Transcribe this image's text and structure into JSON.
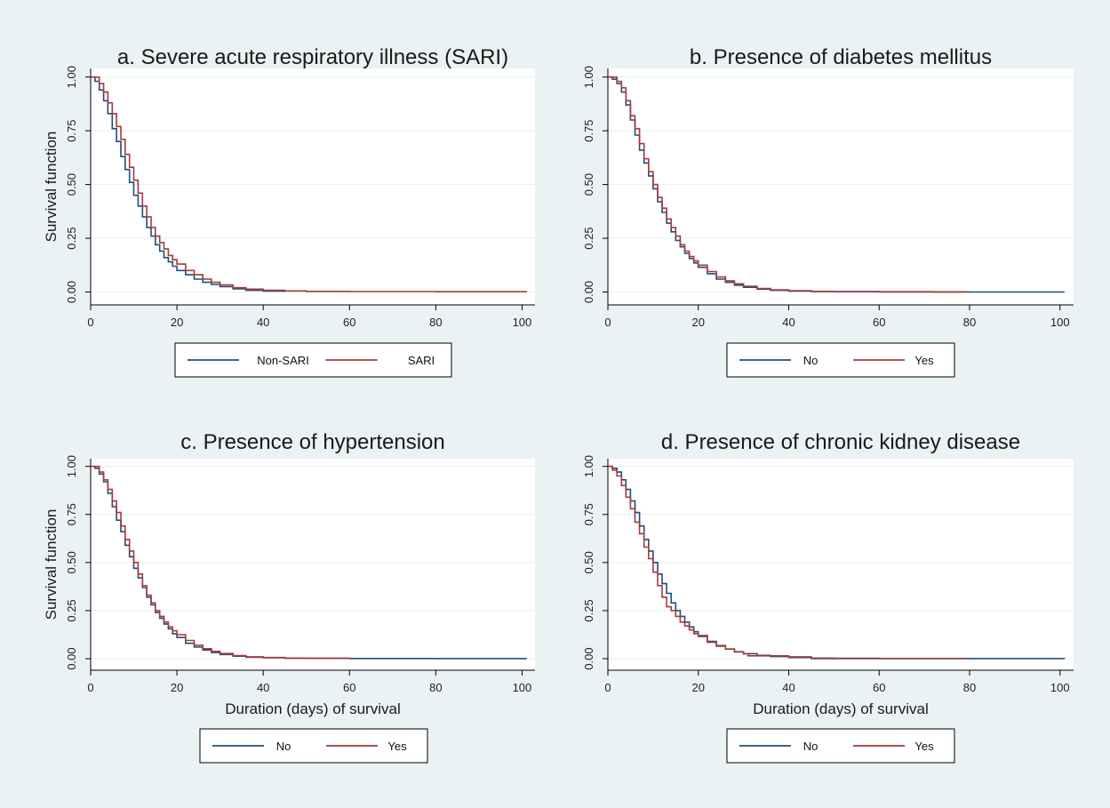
{
  "figure": {
    "background": "#eaf2f3",
    "plot_background": "#ffffff",
    "grid_color": "#eaf2f3"
  },
  "chart_data": [
    {
      "type": "line",
      "title": "a. Severe acute respiratory illness (SARI)",
      "xlabel": "",
      "ylabel": "Survival function",
      "xlim": [
        0,
        103
      ],
      "ylim": [
        -0.06,
        1.04
      ],
      "xticks": [
        0,
        20,
        40,
        60,
        80,
        100
      ],
      "xtick_labels": [
        "0",
        "20",
        "40",
        "60",
        "80",
        "100"
      ],
      "yticks": [
        0,
        0.25,
        0.5,
        0.75,
        1
      ],
      "ytick_labels": [
        "0.00",
        "0.25",
        "0.50",
        "0.75",
        "1.00"
      ],
      "grid": true,
      "legend_position": "bottom",
      "series": [
        {
          "name": "Non-SARI",
          "color": "#1f4e79",
          "x": [
            0,
            1,
            2,
            3,
            4,
            5,
            6,
            7,
            8,
            9,
            10,
            11,
            12,
            13,
            14,
            15,
            16,
            17,
            18,
            19,
            20,
            22,
            24,
            26,
            28,
            30,
            33,
            36,
            40,
            45
          ],
          "y": [
            1.0,
            0.98,
            0.94,
            0.89,
            0.83,
            0.76,
            0.7,
            0.63,
            0.57,
            0.51,
            0.45,
            0.4,
            0.35,
            0.3,
            0.26,
            0.22,
            0.19,
            0.16,
            0.14,
            0.12,
            0.1,
            0.08,
            0.06,
            0.045,
            0.035,
            0.025,
            0.015,
            0.008,
            0.004,
            0.0
          ]
        },
        {
          "name": "SARI",
          "color": "#a53a3a",
          "x": [
            0,
            1,
            2,
            3,
            4,
            5,
            6,
            7,
            8,
            9,
            10,
            11,
            12,
            13,
            14,
            15,
            16,
            17,
            18,
            19,
            20,
            22,
            24,
            26,
            28,
            30,
            33,
            36,
            40,
            45,
            50,
            60,
            80,
            101
          ],
          "y": [
            1.0,
            1.0,
            0.97,
            0.93,
            0.88,
            0.83,
            0.77,
            0.71,
            0.64,
            0.58,
            0.52,
            0.46,
            0.4,
            0.35,
            0.3,
            0.26,
            0.23,
            0.2,
            0.17,
            0.15,
            0.13,
            0.1,
            0.08,
            0.06,
            0.045,
            0.033,
            0.02,
            0.013,
            0.008,
            0.005,
            0.003,
            0.002,
            0.001,
            0.0
          ]
        }
      ]
    },
    {
      "type": "line",
      "title": "b. Presence of diabetes mellitus",
      "xlabel": "",
      "ylabel": "",
      "xlim": [
        0,
        103
      ],
      "ylim": [
        -0.06,
        1.04
      ],
      "xticks": [
        0,
        20,
        40,
        60,
        80,
        100
      ],
      "xtick_labels": [
        "0",
        "20",
        "40",
        "60",
        "80",
        "100"
      ],
      "yticks": [
        0,
        0.25,
        0.5,
        0.75,
        1
      ],
      "ytick_labels": [
        "0.00",
        "0.25",
        "0.50",
        "0.75",
        "1.00"
      ],
      "grid": true,
      "legend_position": "bottom",
      "series": [
        {
          "name": "No",
          "color": "#1f4e79",
          "x": [
            0,
            1,
            2,
            3,
            4,
            5,
            6,
            7,
            8,
            9,
            10,
            11,
            12,
            13,
            14,
            15,
            16,
            17,
            18,
            19,
            20,
            22,
            24,
            26,
            28,
            30,
            33,
            36,
            40,
            45,
            50,
            60,
            80,
            101
          ],
          "y": [
            1.0,
            0.99,
            0.97,
            0.93,
            0.87,
            0.8,
            0.73,
            0.66,
            0.6,
            0.54,
            0.48,
            0.42,
            0.37,
            0.32,
            0.28,
            0.24,
            0.21,
            0.18,
            0.155,
            0.135,
            0.115,
            0.085,
            0.06,
            0.045,
            0.032,
            0.022,
            0.013,
            0.008,
            0.004,
            0.002,
            0.001,
            0.0005,
            0.0,
            0.0
          ]
        },
        {
          "name": "Yes",
          "color": "#a53a3a",
          "x": [
            0,
            1,
            2,
            3,
            4,
            5,
            6,
            7,
            8,
            9,
            10,
            11,
            12,
            13,
            14,
            15,
            16,
            17,
            18,
            19,
            20,
            22,
            24,
            26,
            28,
            30,
            33,
            36,
            40,
            45,
            50,
            60,
            72,
            79
          ],
          "y": [
            1.0,
            1.0,
            0.98,
            0.95,
            0.89,
            0.82,
            0.76,
            0.69,
            0.62,
            0.56,
            0.5,
            0.44,
            0.39,
            0.34,
            0.3,
            0.26,
            0.22,
            0.19,
            0.165,
            0.145,
            0.125,
            0.095,
            0.07,
            0.052,
            0.038,
            0.027,
            0.016,
            0.01,
            0.006,
            0.003,
            0.002,
            0.001,
            0.0005,
            0.0
          ]
        }
      ]
    },
    {
      "type": "line",
      "title": "c. Presence of hypertension",
      "xlabel": "Duration (days) of survival",
      "ylabel": "Survival function",
      "xlim": [
        0,
        103
      ],
      "ylim": [
        -0.06,
        1.04
      ],
      "xticks": [
        0,
        20,
        40,
        60,
        80,
        100
      ],
      "xtick_labels": [
        "0",
        "20",
        "40",
        "60",
        "80",
        "100"
      ],
      "yticks": [
        0,
        0.25,
        0.5,
        0.75,
        1
      ],
      "ytick_labels": [
        "0.00",
        "0.25",
        "0.50",
        "0.75",
        "1.00"
      ],
      "grid": true,
      "legend_position": "bottom",
      "series": [
        {
          "name": "No",
          "color": "#1f4e79",
          "x": [
            0,
            1,
            2,
            3,
            4,
            5,
            6,
            7,
            8,
            9,
            10,
            11,
            12,
            13,
            14,
            15,
            16,
            17,
            18,
            19,
            20,
            22,
            24,
            26,
            28,
            30,
            33,
            36,
            40,
            45,
            50,
            60,
            80,
            101
          ],
          "y": [
            1.0,
            0.99,
            0.96,
            0.92,
            0.86,
            0.79,
            0.72,
            0.66,
            0.59,
            0.53,
            0.47,
            0.42,
            0.37,
            0.32,
            0.28,
            0.24,
            0.21,
            0.18,
            0.155,
            0.13,
            0.11,
            0.08,
            0.06,
            0.045,
            0.032,
            0.022,
            0.013,
            0.008,
            0.005,
            0.003,
            0.002,
            0.001,
            0.0005,
            0.0
          ]
        },
        {
          "name": "Yes",
          "color": "#a53a3a",
          "x": [
            0,
            1,
            2,
            3,
            4,
            5,
            6,
            7,
            8,
            9,
            10,
            11,
            12,
            13,
            14,
            15,
            16,
            17,
            18,
            19,
            20,
            22,
            24,
            26,
            28,
            30,
            33,
            36,
            40,
            45,
            50,
            60
          ],
          "y": [
            1.0,
            1.0,
            0.97,
            0.93,
            0.88,
            0.82,
            0.76,
            0.69,
            0.62,
            0.56,
            0.5,
            0.44,
            0.38,
            0.33,
            0.29,
            0.25,
            0.22,
            0.19,
            0.165,
            0.145,
            0.125,
            0.095,
            0.07,
            0.052,
            0.038,
            0.027,
            0.016,
            0.01,
            0.006,
            0.003,
            0.002,
            0.0
          ]
        }
      ]
    },
    {
      "type": "line",
      "title": "d. Presence of chronic kidney disease",
      "xlabel": "Duration (days) of survival",
      "ylabel": "",
      "xlim": [
        0,
        103
      ],
      "ylim": [
        -0.06,
        1.04
      ],
      "xticks": [
        0,
        20,
        40,
        60,
        80,
        100
      ],
      "xtick_labels": [
        "0",
        "20",
        "40",
        "60",
        "80",
        "100"
      ],
      "yticks": [
        0,
        0.25,
        0.5,
        0.75,
        1
      ],
      "ytick_labels": [
        "0.00",
        "0.25",
        "0.50",
        "0.75",
        "1.00"
      ],
      "grid": true,
      "legend_position": "bottom",
      "series": [
        {
          "name": "No",
          "color": "#1f4e79",
          "x": [
            0,
            1,
            2,
            3,
            4,
            5,
            6,
            7,
            8,
            9,
            10,
            11,
            12,
            13,
            14,
            15,
            16,
            17,
            18,
            19,
            20,
            22,
            24,
            26,
            28,
            30,
            33,
            36,
            40,
            45,
            50,
            60,
            80,
            101
          ],
          "y": [
            1.0,
            0.99,
            0.97,
            0.93,
            0.88,
            0.82,
            0.76,
            0.69,
            0.62,
            0.56,
            0.5,
            0.44,
            0.39,
            0.34,
            0.29,
            0.25,
            0.22,
            0.19,
            0.165,
            0.14,
            0.12,
            0.09,
            0.068,
            0.05,
            0.036,
            0.026,
            0.017,
            0.011,
            0.006,
            0.003,
            0.002,
            0.001,
            0.0005,
            0.0
          ]
        },
        {
          "name": "Yes",
          "color": "#a53a3a",
          "x": [
            0,
            1,
            2,
            3,
            4,
            5,
            6,
            7,
            8,
            9,
            10,
            11,
            12,
            13,
            14,
            15,
            16,
            17,
            18,
            19,
            20,
            22,
            24,
            26,
            28,
            30,
            31,
            40,
            45,
            60,
            79
          ],
          "y": [
            1.0,
            0.98,
            0.95,
            0.9,
            0.84,
            0.78,
            0.71,
            0.65,
            0.58,
            0.52,
            0.45,
            0.38,
            0.32,
            0.27,
            0.25,
            0.22,
            0.19,
            0.17,
            0.15,
            0.13,
            0.115,
            0.085,
            0.065,
            0.05,
            0.035,
            0.025,
            0.015,
            0.01,
            0.0,
            0.0,
            0.0
          ]
        }
      ]
    }
  ]
}
